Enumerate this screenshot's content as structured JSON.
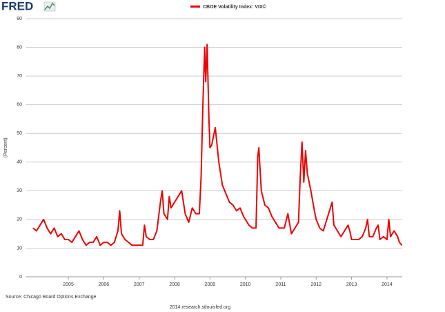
{
  "logo": "FRED",
  "chart_data": {
    "type": "line",
    "title": "CBOE Volatility Index: VIX©",
    "y_label": "(Percent)",
    "source": "Source: Chicago Board Options Exchange",
    "footer": "2014 research.stlouisfed.org",
    "x": [
      2004.0,
      2004.1,
      2004.2,
      2004.3,
      2004.4,
      2004.5,
      2004.6,
      2004.7,
      2004.8,
      2004.9,
      2005.0,
      2005.1,
      2005.2,
      2005.3,
      2005.4,
      2005.5,
      2005.6,
      2005.7,
      2005.8,
      2005.9,
      2006.0,
      2006.1,
      2006.2,
      2006.3,
      2006.4,
      2006.45,
      2006.5,
      2006.6,
      2006.7,
      2006.8,
      2006.9,
      2007.0,
      2007.1,
      2007.15,
      2007.2,
      2007.3,
      2007.4,
      2007.5,
      2007.6,
      2007.65,
      2007.7,
      2007.8,
      2007.85,
      2007.9,
      2008.0,
      2008.1,
      2008.2,
      2008.3,
      2008.4,
      2008.5,
      2008.6,
      2008.7,
      2008.75,
      2008.8,
      2008.85,
      2008.88,
      2008.92,
      2008.97,
      2009.0,
      2009.05,
      2009.15,
      2009.25,
      2009.35,
      2009.45,
      2009.55,
      2009.65,
      2009.75,
      2009.85,
      2009.95,
      2010.0,
      2010.1,
      2010.2,
      2010.3,
      2010.35,
      2010.38,
      2010.45,
      2010.55,
      2010.65,
      2010.75,
      2010.85,
      2010.95,
      2011.0,
      2011.1,
      2011.2,
      2011.3,
      2011.4,
      2011.5,
      2011.55,
      2011.6,
      2011.65,
      2011.7,
      2011.75,
      2011.85,
      2011.95,
      2012.0,
      2012.1,
      2012.2,
      2012.3,
      2012.4,
      2012.45,
      2012.5,
      2012.6,
      2012.7,
      2012.8,
      2012.9,
      2012.95,
      2013.0,
      2013.1,
      2013.2,
      2013.3,
      2013.4,
      2013.45,
      2013.5,
      2013.6,
      2013.7,
      2013.75,
      2013.8,
      2013.9,
      2014.0,
      2014.05,
      2014.1,
      2014.2,
      2014.3,
      2014.35,
      2014.42
    ],
    "series": [
      {
        "name": "CBOE Volatility Index: VIX©",
        "color": "#ee0000",
        "values": [
          17,
          16,
          18,
          20,
          17,
          15,
          17,
          14,
          15,
          13,
          13,
          12,
          14,
          16,
          13,
          11,
          12,
          12,
          14,
          11,
          12,
          12,
          11,
          12,
          16,
          23,
          15,
          13,
          12,
          11,
          11,
          11,
          11,
          18,
          14,
          13,
          13,
          16,
          26,
          30,
          22,
          20,
          28,
          24,
          26,
          28,
          30,
          22,
          19,
          24,
          22,
          22,
          35,
          60,
          80,
          68,
          81,
          55,
          45,
          46,
          52,
          40,
          32,
          29,
          26,
          25,
          23,
          24,
          21,
          20,
          18,
          17,
          17,
          42,
          45,
          30,
          25,
          24,
          21,
          19,
          17,
          17,
          17,
          22,
          15,
          17,
          19,
          35,
          47,
          33,
          44,
          36,
          30,
          23,
          20,
          17,
          16,
          20,
          24,
          26,
          18,
          16,
          14,
          16,
          18,
          16,
          13,
          13,
          13,
          14,
          17,
          20,
          14,
          14,
          17,
          18,
          13,
          14,
          13,
          20,
          14,
          16,
          14,
          12,
          11
        ]
      }
    ],
    "xlim": [
      2003.81,
      2014.43
    ],
    "xticks": [
      2005,
      2006,
      2007,
      2008,
      2009,
      2010,
      2011,
      2012,
      2013,
      2014
    ],
    "ylim": [
      0,
      90
    ],
    "yticks": [
      0,
      10,
      20,
      30,
      40,
      50,
      60,
      70,
      80,
      90
    ],
    "grid": true
  }
}
